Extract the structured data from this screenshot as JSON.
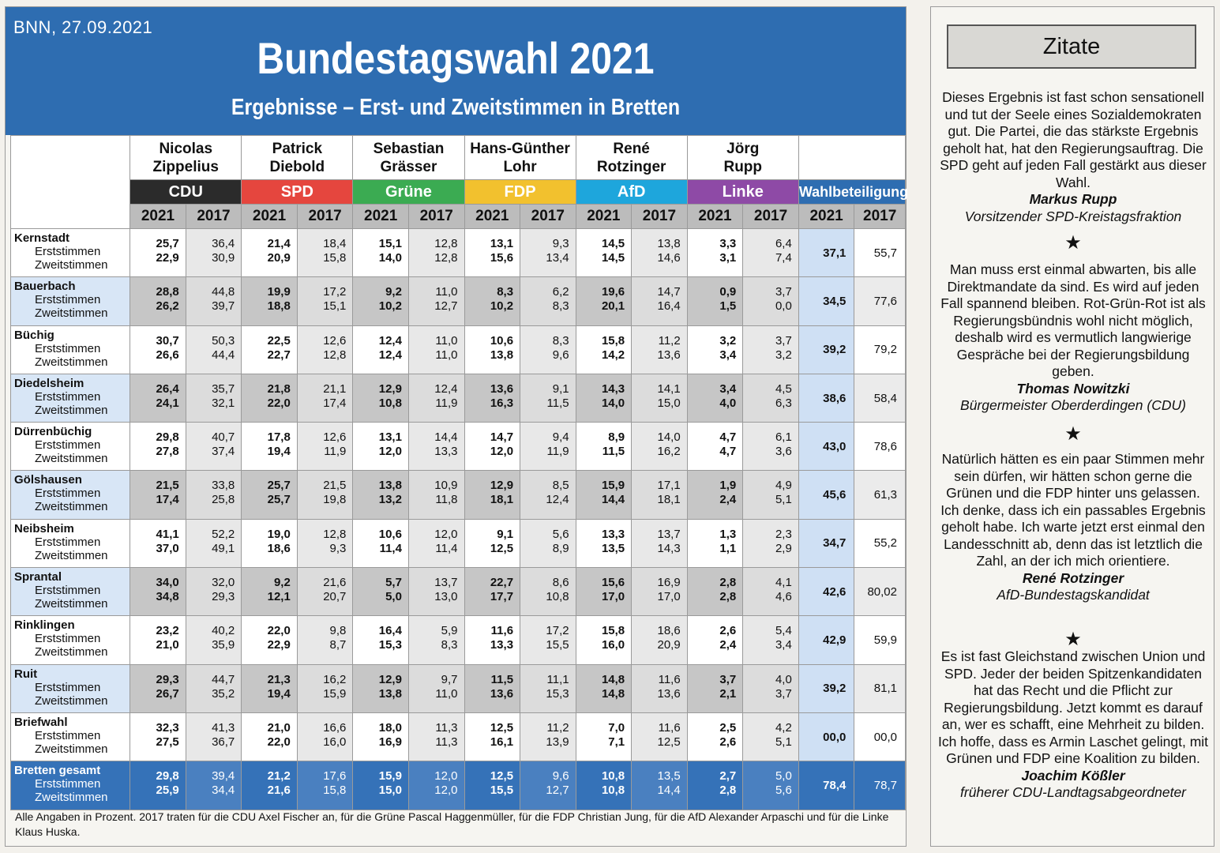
{
  "source": "BNN, 27.09.2021",
  "title": "Bundestagswahl 2021",
  "subtitle": "Ergebnisse – Erst- und Zweitstimmen in Bretten",
  "candidates": [
    {
      "first": "Nicolas",
      "last": "Zippelius",
      "party": "CDU",
      "color": "#2b2b2b"
    },
    {
      "first": "Patrick",
      "last": "Diebold",
      "party": "SPD",
      "color": "#e5463e"
    },
    {
      "first": "Sebastian",
      "last": "Grässer",
      "party": "Grüne",
      "color": "#3bab52"
    },
    {
      "first": "Hans-Günther",
      "last": "Lohr",
      "party": "FDP",
      "color": "#f2c12e"
    },
    {
      "first": "René",
      "last": "Rotzinger",
      "party": "AfD",
      "color": "#1ea6dc"
    },
    {
      "first": "Jörg",
      "last": "Rupp",
      "party": "Linke",
      "color": "#8e4aa6"
    }
  ],
  "turnout_label": "Wahlbeteiligung",
  "years": [
    "2021",
    "2017"
  ],
  "row_labels": {
    "first": "Erststimmen",
    "second": "Zweitstimmen"
  },
  "districts": [
    {
      "name": "Kernstadt",
      "erst": [
        "25,7",
        "36,4",
        "21,4",
        "18,4",
        "15,1",
        "12,8",
        "13,1",
        "9,3",
        "14,5",
        "13,8",
        "3,3",
        "6,4"
      ],
      "zweit": [
        "22,9",
        "30,9",
        "20,9",
        "15,8",
        "14,0",
        "12,8",
        "15,6",
        "13,4",
        "14,5",
        "14,6",
        "3,1",
        "7,4"
      ],
      "turnout": [
        "37,1",
        "55,7"
      ]
    },
    {
      "name": "Bauerbach",
      "erst": [
        "28,8",
        "44,8",
        "19,9",
        "17,2",
        "9,2",
        "11,0",
        "8,3",
        "6,2",
        "19,6",
        "14,7",
        "0,9",
        "3,7"
      ],
      "zweit": [
        "26,2",
        "39,7",
        "18,8",
        "15,1",
        "10,2",
        "12,7",
        "10,2",
        "8,3",
        "20,1",
        "16,4",
        "1,5",
        "0,0"
      ],
      "turnout": [
        "34,5",
        "77,6"
      ]
    },
    {
      "name": "Büchig",
      "erst": [
        "30,7",
        "50,3",
        "22,5",
        "12,6",
        "12,4",
        "11,0",
        "10,6",
        "8,3",
        "15,8",
        "11,2",
        "3,2",
        "3,7"
      ],
      "zweit": [
        "26,6",
        "44,4",
        "22,7",
        "12,8",
        "12,4",
        "11,0",
        "13,8",
        "9,6",
        "14,2",
        "13,6",
        "3,4",
        "3,2"
      ],
      "turnout": [
        "39,2",
        "79,2"
      ]
    },
    {
      "name": "Diedelsheim",
      "erst": [
        "26,4",
        "35,7",
        "21,8",
        "21,1",
        "12,9",
        "12,4",
        "13,6",
        "9,1",
        "14,3",
        "14,1",
        "3,4",
        "4,5"
      ],
      "zweit": [
        "24,1",
        "32,1",
        "22,0",
        "17,4",
        "10,8",
        "11,9",
        "16,3",
        "11,5",
        "14,0",
        "15,0",
        "4,0",
        "6,3"
      ],
      "turnout": [
        "38,6",
        "58,4"
      ]
    },
    {
      "name": "Dürrenbüchig",
      "erst": [
        "29,8",
        "40,7",
        "17,8",
        "12,6",
        "13,1",
        "14,4",
        "14,7",
        "9,4",
        "8,9",
        "14,0",
        "4,7",
        "6,1"
      ],
      "zweit": [
        "27,8",
        "37,4",
        "19,4",
        "11,9",
        "12,0",
        "13,3",
        "12,0",
        "11,9",
        "11,5",
        "16,2",
        "4,7",
        "3,6"
      ],
      "turnout": [
        "43,0",
        "78,6"
      ]
    },
    {
      "name": "Gölshausen",
      "erst": [
        "21,5",
        "33,8",
        "25,7",
        "21,5",
        "13,8",
        "10,9",
        "12,9",
        "8,5",
        "15,9",
        "17,1",
        "1,9",
        "4,9"
      ],
      "zweit": [
        "17,4",
        "25,8",
        "25,7",
        "19,8",
        "13,2",
        "11,8",
        "18,1",
        "12,4",
        "14,4",
        "18,1",
        "2,4",
        "5,1"
      ],
      "turnout": [
        "45,6",
        "61,3"
      ]
    },
    {
      "name": "Neibsheim",
      "erst": [
        "41,1",
        "52,2",
        "19,0",
        "12,8",
        "10,6",
        "12,0",
        "9,1",
        "5,6",
        "13,3",
        "13,7",
        "1,3",
        "2,3"
      ],
      "zweit": [
        "37,0",
        "49,1",
        "18,6",
        "9,3",
        "11,4",
        "11,4",
        "12,5",
        "8,9",
        "13,5",
        "14,3",
        "1,1",
        "2,9"
      ],
      "turnout": [
        "34,7",
        "55,2"
      ]
    },
    {
      "name": "Sprantal",
      "erst": [
        "34,0",
        "32,0",
        "9,2",
        "21,6",
        "5,7",
        "13,7",
        "22,7",
        "8,6",
        "15,6",
        "16,9",
        "2,8",
        "4,1"
      ],
      "zweit": [
        "34,8",
        "29,3",
        "12,1",
        "20,7",
        "5,0",
        "13,0",
        "17,7",
        "10,8",
        "17,0",
        "17,0",
        "2,8",
        "4,6"
      ],
      "turnout": [
        "42,6",
        "80,02"
      ]
    },
    {
      "name": "Rinklingen",
      "erst": [
        "23,2",
        "40,2",
        "22,0",
        "9,8",
        "16,4",
        "5,9",
        "11,6",
        "17,2",
        "15,8",
        "18,6",
        "2,6",
        "5,4"
      ],
      "zweit": [
        "21,0",
        "35,9",
        "22,9",
        "8,7",
        "15,3",
        "8,3",
        "13,3",
        "15,5",
        "16,0",
        "20,9",
        "2,4",
        "3,4"
      ],
      "turnout": [
        "42,9",
        "59,9"
      ]
    },
    {
      "name": "Ruit",
      "erst": [
        "29,3",
        "44,7",
        "21,3",
        "16,2",
        "12,9",
        "9,7",
        "11,5",
        "11,1",
        "14,8",
        "11,6",
        "3,7",
        "4,0"
      ],
      "zweit": [
        "26,7",
        "35,2",
        "19,4",
        "15,9",
        "13,8",
        "11,0",
        "13,6",
        "15,3",
        "14,8",
        "13,6",
        "2,1",
        "3,7"
      ],
      "turnout": [
        "39,2",
        "81,1"
      ]
    },
    {
      "name": "Briefwahl",
      "erst": [
        "32,3",
        "41,3",
        "21,0",
        "16,6",
        "18,0",
        "11,3",
        "12,5",
        "11,2",
        "7,0",
        "11,6",
        "2,5",
        "4,2"
      ],
      "zweit": [
        "27,5",
        "36,7",
        "22,0",
        "16,0",
        "16,9",
        "11,3",
        "16,1",
        "13,9",
        "7,1",
        "12,5",
        "2,6",
        "5,1"
      ],
      "turnout": [
        "00,0",
        "00,0"
      ]
    },
    {
      "name": "Bretten gesamt",
      "erst": [
        "29,8",
        "39,4",
        "21,2",
        "17,6",
        "15,9",
        "12,0",
        "12,5",
        "9,6",
        "10,8",
        "13,5",
        "2,7",
        "5,0"
      ],
      "zweit": [
        "25,9",
        "34,4",
        "21,6",
        "15,8",
        "15,0",
        "12,0",
        "15,5",
        "12,7",
        "10,8",
        "14,4",
        "2,8",
        "5,6"
      ],
      "turnout": [
        "78,4",
        "78,7"
      ]
    }
  ],
  "footnote": "Alle Angaben in Prozent. 2017 traten für die CDU Axel Fischer an, für die Grüne Pascal Haggenmüller, für die FDP Christian Jung, für die AfD Alexander Arpaschi und für die Linke Klaus Huska.",
  "quotes_title": "Zitate",
  "star": "★",
  "quotes": [
    {
      "text": "Dieses Ergebnis ist fast schon sensationell und tut der Seele eines Sozialdemokraten gut. Die Partei, die das stärkste Ergebnis geholt hat, hat den Regierungsauftrag. Die SPD geht auf jeden Fall gestärkt aus dieser Wahl.",
      "name": "Markus Rupp",
      "role": "Vorsitzender SPD-Kreistagsfraktion"
    },
    {
      "text": "Man muss erst einmal abwarten, bis alle Direktmandate da sind. Es wird auf jeden Fall spannend bleiben. Rot-Grün-Rot ist als Regierungsbündnis wohl nicht möglich, deshalb wird es vermutlich langwierige Gespräche bei der Regierungsbildung geben.",
      "name": "Thomas Nowitzki",
      "role": "Bürgermeister Oberderdingen (CDU)"
    },
    {
      "text": "Natürlich hätten es ein paar Stimmen mehr sein dürfen, wir hätten schon gerne die Grünen und die FDP hinter uns gelassen. Ich denke, dass ich ein passables Ergebnis geholt habe. Ich warte jetzt erst einmal den Landesschnitt ab, denn das ist letztlich die Zahl, an der ich mich orientiere.",
      "name": "René Rotzinger",
      "role": "AfD-Bundestagskandidat"
    },
    {
      "text": "Es ist fast Gleichstand zwischen Union und SPD. Jeder der beiden Spitzenkandidaten hat das Recht und die Pflicht zur Regierungsbildung. Jetzt kommt es darauf an, wer es schafft, eine Mehrheit zu bilden. Ich hoffe, dass es Armin Laschet gelingt, mit Grünen und FDP eine Koalition zu bilden.",
      "name": "Joachim Kößler",
      "role": "früherer CDU-Landtagsabgeordneter"
    }
  ]
}
